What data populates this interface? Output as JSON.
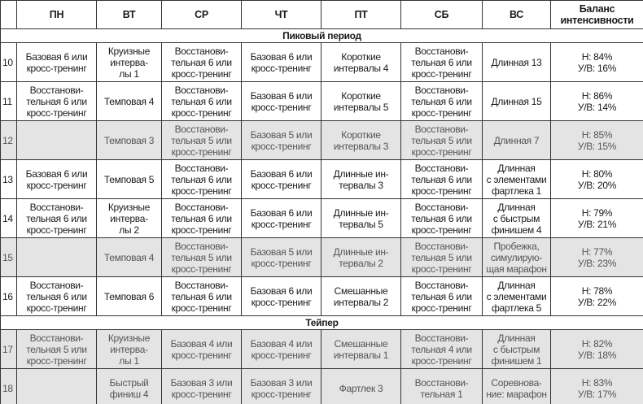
{
  "table": {
    "header": [
      "ПН",
      "ВТ",
      "СР",
      "ЧТ",
      "ПТ",
      "СБ",
      "ВС",
      "Баланс\nинтенсивности"
    ],
    "sections": [
      {
        "title": "Пиковый период",
        "rows": [
          {
            "week": 10,
            "shaded": false,
            "cells": [
              "Базовая 6 или\nкросс-тренинг",
              "Круизные\nинтерва-\nлы 1",
              "Восстанови-\nтельная 6 или\nкросс-тренинг",
              "Базовая 6 или\nкросс-тренинг",
              "Короткие\nинтервалы 4",
              "Восстанови-\nтельная 6 или\nкросс-тренинг",
              "Длинная 13",
              "Н: 84%\nУ/В: 16%"
            ]
          },
          {
            "week": 11,
            "shaded": false,
            "cells": [
              "Восстанови-\nтельная 6 или\nкросс-тренинг",
              "Темповая 4",
              "Восстанови-\nтельная 6 или\nкросс-тренинг",
              "Базовая 6 или\nкросс-тренинг",
              "Короткие\nинтервалы 5",
              "Восстанови-\nтельная 6 или\nкросс-тренинг",
              "Длинная 15",
              "Н: 86%\nУ/В: 14%"
            ]
          },
          {
            "week": 12,
            "shaded": true,
            "cells": [
              null,
              "Темповая 3",
              "Восстанови-\nтельная 5 или\nкросс-тренинг",
              "Базовая 5 или\nкросс-тренинг",
              "Короткие\nинтервалы 3",
              "Восстанови-\nтельная 5 или\nкросс-тренинг",
              "Длинная 7",
              "Н: 85%\nУ/В: 15%"
            ]
          },
          {
            "week": 13,
            "shaded": false,
            "cells": [
              "Базовая 6 или\nкросс-тренинг",
              "Темповая 5",
              "Восстанови-\nтельная 6 или\nкросс-тренинг",
              "Базовая 6 или\nкросс-тренинг",
              "Длинные ин-\nтервалы 3",
              "Восстанови-\nтельная 6 или\nкросс-тренинг",
              "Длинная\nс элементами\nфартлека 1",
              "Н: 80%\nУ/В: 20%"
            ]
          },
          {
            "week": 14,
            "shaded": false,
            "cells": [
              "Восстанови-\nтельная 6 или\nкросс-тренинг",
              "Круизные\nинтерва-\nлы 2",
              "Восстанови-\nтельная 6 или\nкросс-тренинг",
              "Базовая 6 или\nкросс-тренинг",
              "Длинные ин-\nтервалы 5",
              "Восстанови-\nтельная 6 или\nкросс-тренинг",
              "Длинная\nс быстрым\nфинишем 4",
              "Н: 79%\nУ/В: 21%"
            ]
          },
          {
            "week": 15,
            "shaded": true,
            "cells": [
              null,
              "Темповая 4",
              "Восстанови-\nтельная 5 или\nкросс-тренинг",
              "Базовая 5 или\nкросс-тренинг",
              "Длинные ин-\nтервалы 2",
              "Восстанови-\nтельная 5 или\nкросс-тренинг",
              "Пробежка,\nсимулирую-\nщая марафон",
              "Н: 77%\nУ/В: 23%"
            ]
          },
          {
            "week": 16,
            "shaded": false,
            "cells": [
              "Восстанови-\nтельная 6 или\nкросс-тренинг",
              "Темповая 6",
              "Восстанови-\nтельная 6 или\nкросс-тренинг",
              "Базовая 6 или\nкросс-тренинг",
              "Смешанные\nинтервалы 2",
              "Восстанови-\nтельная 6 или\nкросс-тренинг",
              "Длинная\nс элементами\nфартлека 5",
              "Н: 78%\nУ/В: 22%"
            ]
          }
        ]
      },
      {
        "title": "Тейпер",
        "rows": [
          {
            "week": 17,
            "shaded": true,
            "cells": [
              "Восстанови-\nтельная 5 или\nкросс-тренинг",
              "Круизные\nинтерва-\nлы 1",
              "Базовая 4 или\nкросс-тренинг",
              "Базовая 4 или\nкросс-тренинг",
              "Смешанные\nинтервалы 1",
              "Восстанови-\nтельная 4 или\nкросс-тренинг",
              "Длинная\nс быстрым\nфинишем 1",
              "Н: 82%\nУ/В: 18%"
            ]
          },
          {
            "week": 18,
            "shaded": true,
            "cells": [
              null,
              "Быстрый\nфиниш 4",
              "Базовая 3 или\nкросс-тренинг",
              "Базовая 3 или\nкросс-тренинг",
              "Фартлек 3",
              "Восстанови-\nтельная 1",
              "Соревнова-\nние: марафон",
              "Н: 83%\nУ/В: 17%"
            ]
          }
        ]
      }
    ]
  }
}
